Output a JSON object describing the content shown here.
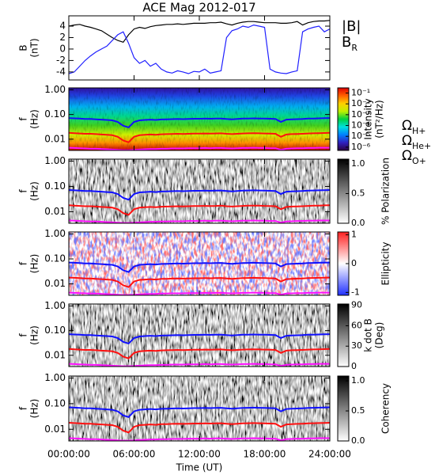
{
  "chart_data": [
    {
      "type": "line",
      "title": "ACE Mag 2012-017",
      "ylabel": [
        "B",
        "(nT)"
      ],
      "ylim": [
        -5.4,
        5.8
      ],
      "yticks": [
        -4,
        -2,
        0,
        2,
        4
      ],
      "x": [
        0,
        0.5,
        1,
        1.5,
        2,
        2.5,
        3,
        3.5,
        4,
        4.5,
        5,
        5.5,
        6,
        6.5,
        7,
        7.5,
        8,
        8.5,
        9,
        9.5,
        10,
        10.5,
        11,
        11.5,
        12,
        12.5,
        13,
        13.5,
        14,
        14.5,
        15,
        15.5,
        16,
        16.5,
        17,
        17.5,
        18,
        18.5,
        19,
        19.5,
        20,
        20.5,
        21,
        21.5,
        22,
        22.5,
        23,
        23.5,
        24
      ],
      "series": [
        {
          "name": "|B|",
          "color": "#000000",
          "values": [
            4.0,
            4.2,
            4.3,
            4.0,
            3.8,
            3.5,
            3.2,
            2.6,
            2.0,
            1.5,
            1.2,
            2.5,
            3.5,
            3.8,
            3.6,
            3.9,
            4.1,
            4.2,
            4.3,
            4.3,
            4.4,
            4.3,
            4.4,
            4.5,
            4.5,
            4.5,
            4.6,
            4.6,
            4.7,
            4.4,
            4.2,
            4.5,
            4.7,
            4.8,
            4.8,
            4.7,
            4.6,
            4.6,
            4.6,
            4.5,
            4.5,
            4.6,
            4.8,
            4.2,
            4.6,
            4.8,
            4.9,
            4.9,
            5.0
          ]
        },
        {
          "name": "BR",
          "color": "#1f1fff",
          "values": [
            -4.3,
            -4.0,
            -3.0,
            -2.0,
            -1.2,
            -0.5,
            0.0,
            0.5,
            1.5,
            2.5,
            3.0,
            1.0,
            -1.5,
            -2.5,
            -2.0,
            -3.0,
            -2.5,
            -3.5,
            -4.0,
            -4.2,
            -3.8,
            -4.0,
            -4.3,
            -3.9,
            -4.0,
            -3.5,
            -4.2,
            -4.0,
            -3.8,
            2.0,
            3.2,
            3.5,
            4.0,
            3.8,
            4.2,
            4.0,
            3.8,
            -3.5,
            -4.0,
            -4.2,
            -4.3,
            -4.0,
            -3.8,
            3.0,
            3.5,
            3.8,
            4.0,
            3.0,
            3.5
          ]
        }
      ]
    },
    {
      "type": "heatmap",
      "ylabel": [
        "f",
        "(Hz)"
      ],
      "ylog": true,
      "ylim": [
        0.0035,
        1.2
      ],
      "yticks": [
        {
          "value": 1,
          "label": "1.00"
        },
        {
          "value": 0.1,
          "label": "0.10"
        },
        {
          "value": 0.01,
          "label": "0.01"
        }
      ],
      "colorbar": {
        "label": [
          "Intensity",
          "(nT²/Hz)"
        ],
        "log": true,
        "lim": [
          5e-07,
          0.3
        ],
        "ticks": [
          {
            "value": 0.1,
            "label": "10⁻¹"
          },
          {
            "value": 0.01,
            "label": "10⁻²"
          },
          {
            "value": 0.001,
            "label": "10⁻³"
          },
          {
            "value": 0.0001,
            "label": "10⁻⁴"
          },
          {
            "value": 1e-05,
            "label": "10⁻⁵"
          },
          {
            "value": 1e-06,
            "label": "10⁻⁶"
          }
        ],
        "colors": [
          "#2a0040",
          "#3020c0",
          "#0080ff",
          "#00e0e0",
          "#00d040",
          "#c0f000",
          "#ffd000",
          "#ff6000",
          "#e00000"
        ]
      },
      "x": [
        0,
        0.5,
        1,
        1.5,
        2,
        2.5,
        3,
        3.5,
        4,
        4.5,
        5,
        5.5,
        6,
        6.5,
        7,
        7.5,
        8,
        8.5,
        9,
        9.5,
        10,
        10.5,
        11,
        11.5,
        12,
        12.5,
        13,
        13.5,
        14,
        14.5,
        15,
        15.5,
        16,
        16.5,
        17,
        17.5,
        18,
        18.5,
        19,
        19.5,
        20,
        20.5,
        21,
        21.5,
        22,
        22.5,
        23,
        23.5,
        24
      ],
      "series": [
        {
          "name": "ΩH+",
          "color": "#1010ff",
          "values": [
            0.072,
            0.07,
            0.068,
            0.066,
            0.066,
            0.064,
            0.062,
            0.06,
            0.058,
            0.05,
            0.035,
            0.03,
            0.05,
            0.058,
            0.06,
            0.062,
            0.06,
            0.063,
            0.064,
            0.065,
            0.066,
            0.065,
            0.066,
            0.067,
            0.067,
            0.068,
            0.067,
            0.068,
            0.069,
            0.066,
            0.064,
            0.066,
            0.068,
            0.069,
            0.07,
            0.069,
            0.068,
            0.067,
            0.066,
            0.05,
            0.062,
            0.064,
            0.065,
            0.066,
            0.068,
            0.069,
            0.07,
            0.071,
            0.072
          ]
        },
        {
          "name": "ΩHe+",
          "color": "#ff1010",
          "values": [
            0.018,
            0.0175,
            0.017,
            0.0165,
            0.0165,
            0.016,
            0.0155,
            0.015,
            0.0145,
            0.0125,
            0.0088,
            0.0075,
            0.0125,
            0.0145,
            0.015,
            0.0155,
            0.015,
            0.0158,
            0.016,
            0.0163,
            0.0165,
            0.0163,
            0.0165,
            0.0168,
            0.0168,
            0.017,
            0.0168,
            0.017,
            0.0173,
            0.0165,
            0.016,
            0.0165,
            0.017,
            0.0173,
            0.0175,
            0.0173,
            0.017,
            0.0168,
            0.0165,
            0.0125,
            0.0155,
            0.016,
            0.0163,
            0.0165,
            0.017,
            0.0173,
            0.0175,
            0.0178,
            0.018
          ]
        },
        {
          "name": "ΩO+",
          "color": "#ff10ff",
          "values": [
            0.0045,
            0.0044,
            0.0043,
            0.0042,
            0.0041,
            0.0041,
            0.004,
            0.0039,
            0.0038,
            0.0037,
            0.0036,
            0.0036,
            0.0037,
            0.0038,
            0.0039,
            0.004,
            0.004,
            0.0041,
            0.0041,
            0.0042,
            0.0042,
            0.0042,
            0.0043,
            0.0043,
            0.0043,
            0.0044,
            0.0043,
            0.0044,
            0.0044,
            0.0043,
            0.0042,
            0.0043,
            0.0044,
            0.0044,
            0.0045,
            0.0044,
            0.0044,
            0.0043,
            0.0043,
            0.0037,
            0.0041,
            0.0042,
            0.0043,
            0.0043,
            0.0044,
            0.0044,
            0.0045,
            0.0045,
            0.0045
          ]
        }
      ]
    },
    {
      "type": "heatmap",
      "ylabel": [
        "f",
        "(Hz)"
      ],
      "ylog": true,
      "ylim": [
        0.0035,
        1.2
      ],
      "yticks": [
        {
          "value": 1,
          "label": "1.00"
        },
        {
          "value": 0.1,
          "label": "0.10"
        },
        {
          "value": 0.01,
          "label": "0.01"
        }
      ],
      "colorbar": {
        "label": [
          "% Polarization"
        ],
        "lim": [
          0,
          1.08
        ],
        "ticks": [
          {
            "value": 1,
            "label": "1.0"
          },
          {
            "value": 0.5,
            "label": "0.5"
          },
          {
            "value": 0,
            "label": "0.0"
          }
        ],
        "colors": [
          "#ffffff",
          "#000000"
        ]
      }
    },
    {
      "type": "heatmap",
      "ylabel": [
        "f",
        "(Hz)"
      ],
      "ylog": true,
      "ylim": [
        0.0035,
        1.2
      ],
      "yticks": [
        {
          "value": 1,
          "label": "1.00"
        },
        {
          "value": 0.1,
          "label": "0.10"
        },
        {
          "value": 0.01,
          "label": "0.01"
        }
      ],
      "colorbar": {
        "label": [
          "Ellipticity"
        ],
        "lim": [
          -1.1,
          1.1
        ],
        "ticks": [
          1,
          0,
          -1
        ],
        "colors": [
          "#2030ff",
          "#ffffff",
          "#ff2020"
        ]
      }
    },
    {
      "type": "heatmap",
      "ylabel": [
        "f",
        "(Hz)"
      ],
      "ylog": true,
      "ylim": [
        0.0035,
        1.2
      ],
      "yticks": [
        {
          "value": 1,
          "label": "1.00"
        },
        {
          "value": 0.1,
          "label": "0.10"
        },
        {
          "value": 0.01,
          "label": "0.01"
        }
      ],
      "colorbar": {
        "label": [
          "k dot B",
          "(Deg)"
        ],
        "lim": [
          0,
          92
        ],
        "ticks": [
          90,
          60,
          30,
          0
        ],
        "colors": [
          "#ffffff",
          "#000000"
        ]
      }
    },
    {
      "type": "heatmap",
      "ylabel": [
        "f",
        "(Hz)"
      ],
      "ylog": true,
      "ylim": [
        0.0035,
        1.2
      ],
      "yticks": [
        {
          "value": 1,
          "label": "1.00"
        },
        {
          "value": 0.1,
          "label": "0.10"
        },
        {
          "value": 0.01,
          "label": "0.01"
        }
      ],
      "colorbar": {
        "label": [
          "Coherency"
        ],
        "lim": [
          0,
          1.08
        ],
        "ticks": [
          {
            "value": 1,
            "label": "1.0"
          },
          {
            "value": 0.5,
            "label": "0.5"
          },
          {
            "value": 0,
            "label": "0.0"
          }
        ],
        "colors": [
          "#ffffff",
          "#000000"
        ]
      },
      "xlabel": "Time (UT)",
      "xlim": [
        0,
        24
      ],
      "xticks": [
        {
          "value": 0,
          "label": "00:00:00"
        },
        {
          "value": 6,
          "label": "06:00:00"
        },
        {
          "value": 12,
          "label": "12:00:00"
        },
        {
          "value": 18,
          "label": "18:00:00"
        },
        {
          "value": 24,
          "label": "24:00:00"
        }
      ]
    }
  ]
}
